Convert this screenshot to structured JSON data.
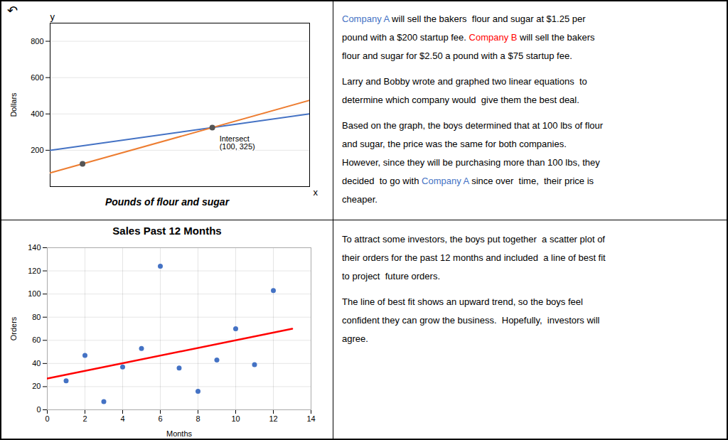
{
  "chart_data": [
    {
      "type": "line",
      "x": [
        0,
        160
      ],
      "series": [
        {
          "name": "Company A",
          "color": "#4472C4",
          "values": [
            200,
            400
          ]
        },
        {
          "name": "Company B",
          "color": "#ED7D31",
          "values": [
            75,
            475
          ]
        }
      ],
      "points": {
        "x": [
          100,
          20
        ],
        "values": [
          325,
          125
        ],
        "color": "#555555"
      },
      "annotations": [
        {
          "text": "↶"
        },
        {
          "text": "y",
          "x": 0,
          "y": 900
        },
        {
          "text": "x",
          "x": 160,
          "y": 0
        },
        {
          "text": "Intersect\n(100, 325)",
          "x": 100,
          "y": 325
        }
      ],
      "xlabel": "Pounds of flour and sugar",
      "ylabel": "Dollars",
      "xlim": [
        0,
        160
      ],
      "ylim": [
        0,
        900
      ],
      "xticks": [],
      "yticks": [
        200,
        400,
        600,
        800
      ],
      "grid": true,
      "tick_labels": "y",
      "legend": false
    },
    {
      "type": "text",
      "paragraphs": [
        [
          [
            {
              "text": "Company A",
              "color": "#4472C4"
            },
            {
              "text": " will sell the bakers  flour and sugar at $1.25 per"
            }
          ],
          [
            {
              "text": "pound with a $200 startup fee. "
            },
            {
              "text": "Company B",
              "color": "#FF0000"
            },
            {
              "text": " will sell the bakers"
            }
          ],
          [
            {
              "text": "flour and sugar for $2.50 a pound with a $75 startup fee."
            }
          ]
        ],
        [
          [
            {
              "text": "Larry and Bobby wrote and graphed two linear equations  to"
            }
          ],
          [
            {
              "text": "determine which company would  give them the best deal."
            }
          ]
        ],
        [
          [
            {
              "text": "Based on the graph, the boys determined that at 100 lbs of flour"
            }
          ],
          [
            {
              "text": "and sugar, the price was the same for both companies."
            }
          ],
          [
            {
              "text": "However, since they will be purchasing more than 100 lbs, they"
            }
          ],
          [
            {
              "text": "decided  to go with "
            },
            {
              "text": "Company A",
              "color": "#4472C4"
            },
            {
              "text": " since over  time,  their price is"
            }
          ],
          [
            {
              "text": "cheaper."
            }
          ]
        ]
      ]
    },
    {
      "type": "scatter",
      "title": "Sales Past 12 Months",
      "x": [
        1,
        2,
        3,
        4,
        5,
        6,
        7,
        8,
        9,
        10,
        11,
        12
      ],
      "values": [
        25,
        47,
        7,
        37,
        53,
        124,
        36,
        16,
        43,
        70,
        39,
        103
      ],
      "color": "#4472C4",
      "best_fit": {
        "x": [
          0,
          13
        ],
        "values": [
          27,
          70
        ],
        "color": "#FF0000"
      },
      "xlabel": "Months",
      "ylabel": "Orders",
      "xlim": [
        0,
        14
      ],
      "ylim": [
        0,
        140
      ],
      "xticks": [
        0,
        2,
        4,
        6,
        8,
        10,
        12,
        14
      ],
      "yticks": [
        0,
        20,
        40,
        60,
        80,
        100,
        120,
        140
      ],
      "grid": true
    },
    {
      "type": "text",
      "paragraphs": [
        [
          [
            {
              "text": "To attract some investors, the boys put together  a scatter plot of"
            }
          ],
          [
            {
              "text": "their orders for the past 12 months and included  a line of best fit"
            }
          ],
          [
            {
              "text": "to project  future orders."
            }
          ]
        ],
        [
          [
            {
              "text": "The line of best fit shows an upward trend, so the boys feel"
            }
          ],
          [
            {
              "text": "confident they can grow the business.  Hopefully,  investors will"
            }
          ],
          [
            {
              "text": "agree."
            }
          ]
        ]
      ]
    }
  ]
}
